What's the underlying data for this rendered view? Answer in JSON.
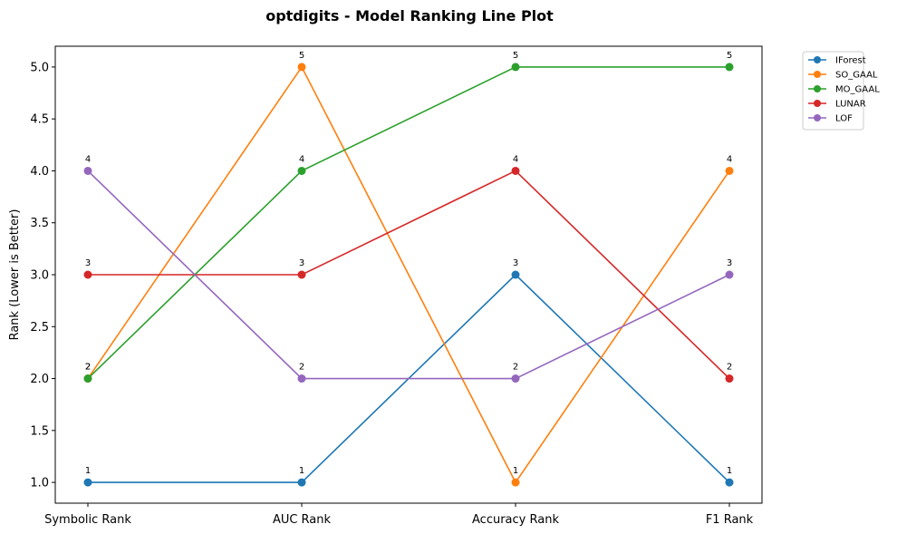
{
  "chart_data": {
    "type": "line",
    "title": "optdigits - Model Ranking Line Plot",
    "xlabel": "",
    "ylabel": "Rank (Lower is Better)",
    "categories": [
      "Symbolic Rank",
      "AUC Rank",
      "Accuracy Rank",
      "F1 Rank"
    ],
    "ylim": [
      0.8,
      5.2
    ],
    "yticks": [
      "1.0",
      "1.5",
      "2.0",
      "2.5",
      "3.0",
      "3.5",
      "4.0",
      "4.5",
      "5.0"
    ],
    "legend_position": "outside-top-right",
    "grid": false,
    "series": [
      {
        "name": "IForest",
        "color": "#1f77b4",
        "values": [
          1,
          1,
          3,
          1
        ]
      },
      {
        "name": "SO_GAAL",
        "color": "#ff7f0e",
        "values": [
          2,
          5,
          1,
          4
        ]
      },
      {
        "name": "MO_GAAL",
        "color": "#2ca02c",
        "values": [
          2,
          4,
          5,
          5
        ]
      },
      {
        "name": "LUNAR",
        "color": "#d62728",
        "values": [
          3,
          3,
          4,
          2
        ]
      },
      {
        "name": "LOF",
        "color": "#9467bd",
        "values": [
          4,
          2,
          2,
          3
        ]
      }
    ]
  }
}
